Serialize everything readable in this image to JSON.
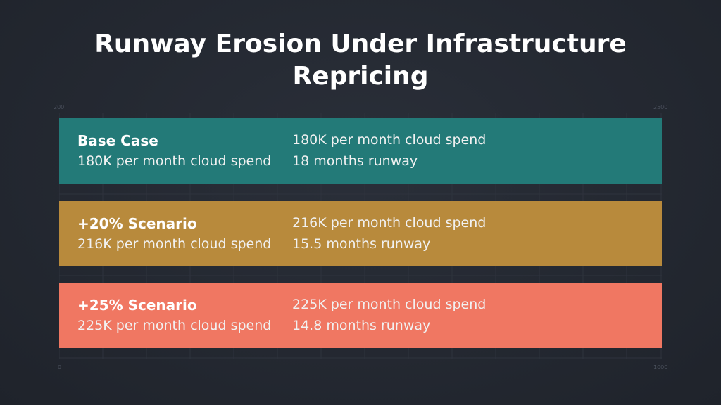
{
  "title": "Runway Erosion Under Infrastructure Repricing",
  "axis_labels": {
    "top_left": "200",
    "top_right": "2500",
    "bottom_left": "0",
    "bottom_right": "1000"
  },
  "rows": [
    {
      "name": "Base Case",
      "subtitle": "180K per month cloud spend",
      "detail_1": "180K per month cloud spend",
      "detail_2": "18 months runway"
    },
    {
      "name": "+20% Scenario",
      "subtitle": "216K per month cloud spend",
      "detail_1": "216K per month cloud spend",
      "detail_2": "15.5 months runway"
    },
    {
      "name": "+25% Scenario",
      "subtitle": "225K per month cloud spend",
      "detail_1": "225K per month cloud spend",
      "detail_2": "14.8 months runway"
    }
  ]
}
